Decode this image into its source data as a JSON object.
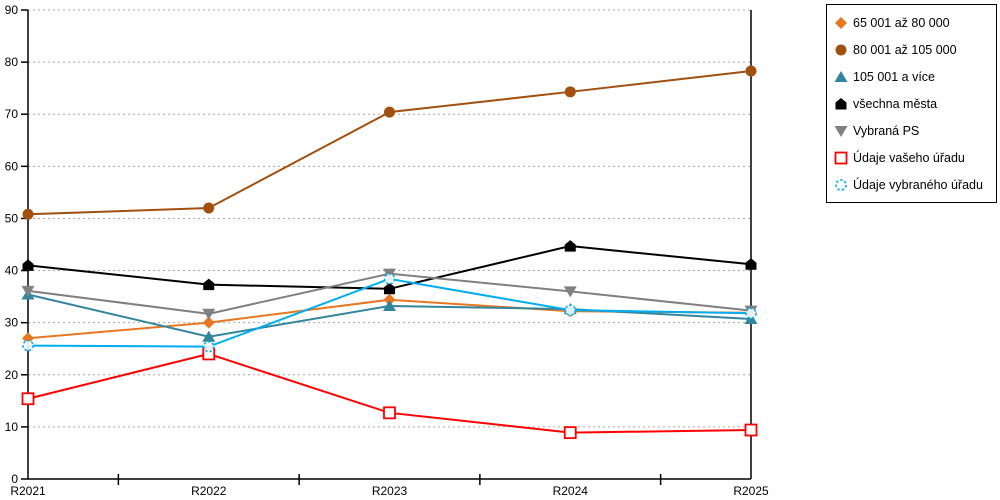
{
  "chart_data": {
    "type": "line",
    "title": "",
    "xlabel": "",
    "ylabel": "",
    "ylim": [
      0,
      90
    ],
    "ytick_step": 10,
    "y_tick_labels": [
      "0",
      "10",
      "20",
      "30",
      "40",
      "50",
      "60",
      "70",
      "80",
      "90"
    ],
    "grid": "horizontal-dotted",
    "legend_position": "right",
    "categories": [
      "R2021",
      "R2022",
      "R2023",
      "R2024",
      "R2025"
    ],
    "series": [
      {
        "name": "65 001 až 80 000",
        "color": "#E87722",
        "marker": "diamond",
        "values": [
          27.0,
          30.0,
          34.4,
          32.2,
          31.9
        ]
      },
      {
        "name": "80 001 až 105 000",
        "color": "#A1500F",
        "marker": "circle",
        "values": [
          50.8,
          52.0,
          70.4,
          74.3,
          78.3
        ]
      },
      {
        "name": "105 001 a více",
        "color": "#31859C",
        "marker": "triangle-up",
        "values": [
          35.4,
          27.3,
          33.2,
          32.6,
          30.7
        ]
      },
      {
        "name": "všechna města",
        "color": "#000000",
        "marker": "pentagon",
        "values": [
          41.0,
          37.3,
          36.5,
          44.7,
          41.2
        ]
      },
      {
        "name": "Vybraná PS",
        "color": "#808080",
        "marker": "triangle-down",
        "values": [
          36.1,
          31.7,
          39.4,
          36.0,
          32.3
        ]
      },
      {
        "name": "Údaje vašeho úřadu",
        "color": "#FF0000",
        "marker": "open-square",
        "values": [
          15.4,
          24.0,
          12.7,
          8.9,
          9.4
        ]
      },
      {
        "name": "Údaje vybraného úřadu",
        "color": "#00AEEF",
        "marker": "open-circle-dashed",
        "values": [
          25.6,
          25.4,
          38.4,
          32.4,
          31.8
        ]
      }
    ],
    "colors": {
      "gridline": "#A6A6A6",
      "axis": "#000000",
      "background": "#FFFFFF"
    }
  }
}
